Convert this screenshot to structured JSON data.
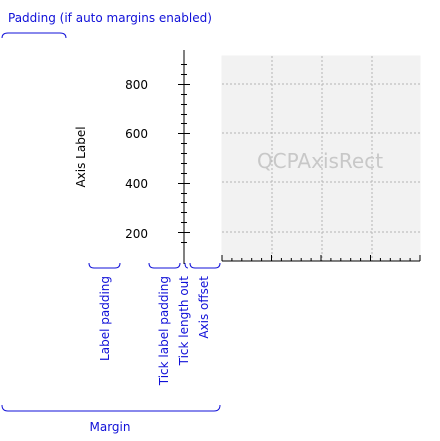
{
  "annotations": {
    "padding": "Padding (if auto margins enabled)",
    "label_padding": "Label padding",
    "tick_label_padding": "Tick label padding",
    "tick_length_out": "Tick length out",
    "axis_offset": "Axis offset",
    "margin": "Margin"
  },
  "axis": {
    "label": "Axis Label",
    "tick_labels": [
      "200",
      "400",
      "600",
      "800"
    ]
  },
  "axis_rect": {
    "label": "QCPAxisRect"
  },
  "colors": {
    "annotation": "#1010d8",
    "axis_rect_fill": "#f2f2f2",
    "grid": "#b4b4b4",
    "axis_rect_label": "#c8c8c8"
  }
}
